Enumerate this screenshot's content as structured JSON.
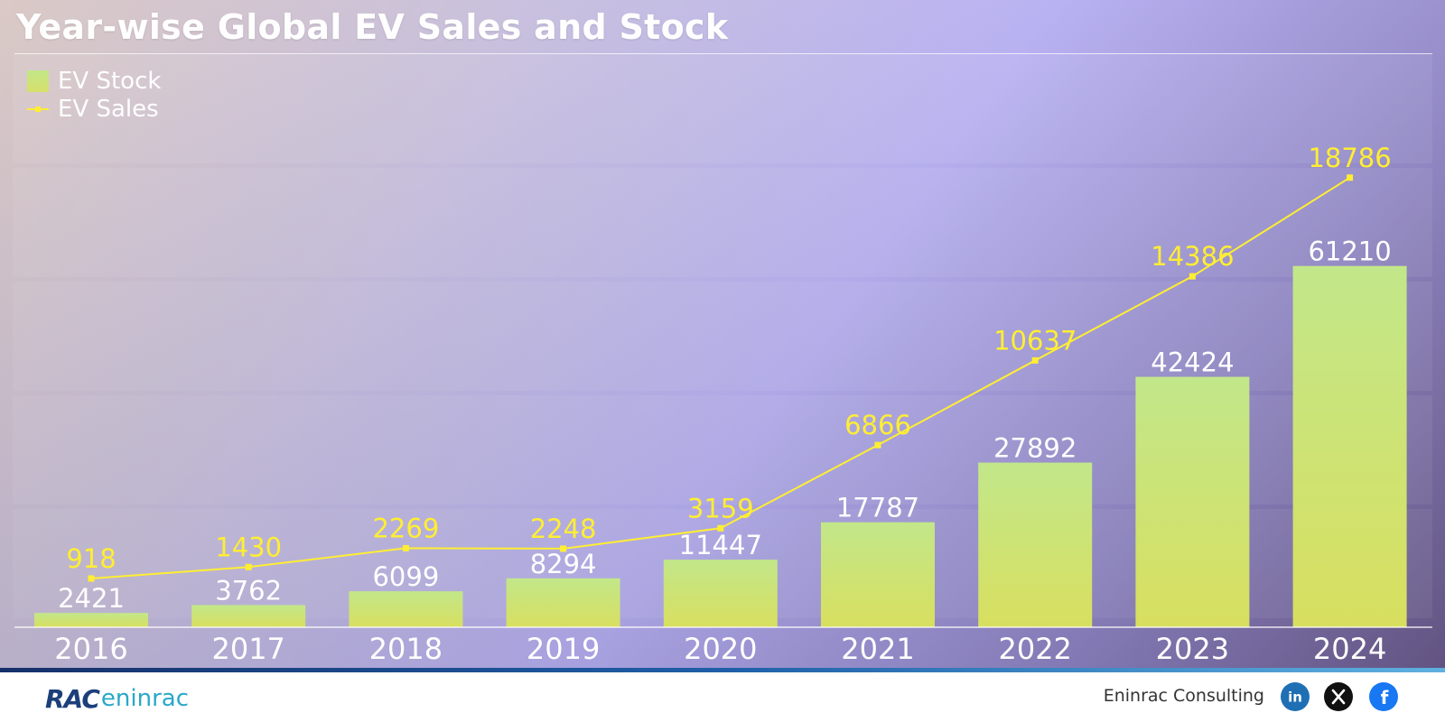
{
  "title": "Year-wise Global EV Sales and Stock",
  "legend": {
    "bar_label": "EV Stock",
    "line_label": "EV Sales"
  },
  "chart_data": {
    "type": "bar",
    "title": "Year-wise Global EV Sales and Stock",
    "categories": [
      "2016",
      "2017",
      "2018",
      "2019",
      "2020",
      "2021",
      "2022",
      "2023",
      "2024"
    ],
    "series": [
      {
        "name": "EV Stock",
        "type": "bar",
        "values": [
          2421,
          3762,
          6099,
          8294,
          11447,
          17787,
          27892,
          42424,
          61210
        ],
        "color": "#c6e585"
      },
      {
        "name": "EV Sales",
        "type": "line",
        "values": [
          918,
          1430,
          2269,
          2248,
          3159,
          6866,
          10637,
          14386,
          18786
        ],
        "color": "#ffee33"
      }
    ],
    "xlabel": "",
    "ylabel": "",
    "grid": false,
    "legend_position": "top-left"
  },
  "colors": {
    "bar_top": "#c2e78a",
    "bar_bottom": "#d8df5f",
    "line": "#ffee33",
    "bar_label": "#ffffff",
    "line_label": "#ffee33",
    "axis_label": "#ffffff"
  },
  "footer": {
    "logo_mark": "RAC",
    "logo_text": "eninrac",
    "company": "Eninrac Consulting",
    "social": [
      {
        "name": "linkedin-icon",
        "color": "#1f6fb5"
      },
      {
        "name": "x-icon",
        "color": "#111111"
      },
      {
        "name": "facebook-icon",
        "color": "#1877f2"
      }
    ]
  }
}
